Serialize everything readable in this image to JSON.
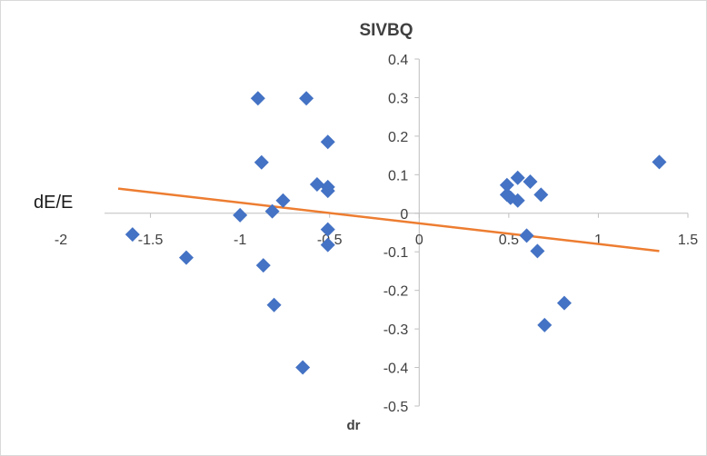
{
  "chart_data": {
    "type": "scatter",
    "title": "SIVBQ",
    "xlabel": "dr",
    "ylabel": "dE/E",
    "xlim": [
      -2,
      1.5
    ],
    "ylim": [
      -0.5,
      0.4
    ],
    "xticks": [
      -2,
      -1.5,
      -1,
      -0.5,
      0,
      0.5,
      1,
      1.5
    ],
    "xtick_labels": [
      "-2",
      "-1.5",
      "-1",
      "-0.5",
      "0",
      "0.5",
      "1",
      "1.5"
    ],
    "yticks": [
      0.4,
      0.3,
      0.2,
      0.1,
      0,
      -0.1,
      -0.2,
      -0.3,
      -0.4,
      -0.5
    ],
    "ytick_labels": [
      "0.4",
      "0.3",
      "0.2",
      "0.1",
      "0",
      "-0.1",
      "-0.2",
      "-0.3",
      "-0.4",
      "-0.5"
    ],
    "grid": false,
    "legend": "none",
    "marker_color": "#4472c4",
    "trendline_color": "#ed7d31",
    "points": [
      {
        "x": -1.6,
        "y": -0.055
      },
      {
        "x": -1.3,
        "y": -0.115
      },
      {
        "x": -1.0,
        "y": -0.005
      },
      {
        "x": -0.9,
        "y": 0.298
      },
      {
        "x": -0.88,
        "y": 0.132
      },
      {
        "x": -0.87,
        "y": -0.135
      },
      {
        "x": -0.82,
        "y": 0.005
      },
      {
        "x": -0.81,
        "y": -0.238
      },
      {
        "x": -0.76,
        "y": 0.033
      },
      {
        "x": -0.65,
        "y": -0.4
      },
      {
        "x": -0.63,
        "y": 0.298
      },
      {
        "x": -0.57,
        "y": 0.075
      },
      {
        "x": -0.51,
        "y": 0.185
      },
      {
        "x": -0.51,
        "y": 0.068
      },
      {
        "x": -0.51,
        "y": 0.058
      },
      {
        "x": -0.51,
        "y": -0.042
      },
      {
        "x": -0.51,
        "y": -0.082
      },
      {
        "x": 0.49,
        "y": 0.073
      },
      {
        "x": 0.49,
        "y": 0.048
      },
      {
        "x": 0.51,
        "y": 0.04
      },
      {
        "x": 0.55,
        "y": 0.092
      },
      {
        "x": 0.55,
        "y": 0.033
      },
      {
        "x": 0.6,
        "y": -0.058
      },
      {
        "x": 0.62,
        "y": 0.082
      },
      {
        "x": 0.66,
        "y": -0.098
      },
      {
        "x": 0.68,
        "y": 0.048
      },
      {
        "x": 0.7,
        "y": -0.29
      },
      {
        "x": 0.81,
        "y": -0.233
      },
      {
        "x": 1.34,
        "y": 0.133
      }
    ],
    "trendline": {
      "x": [
        -1.68,
        1.34
      ],
      "y": [
        0.064,
        -0.098
      ]
    }
  }
}
